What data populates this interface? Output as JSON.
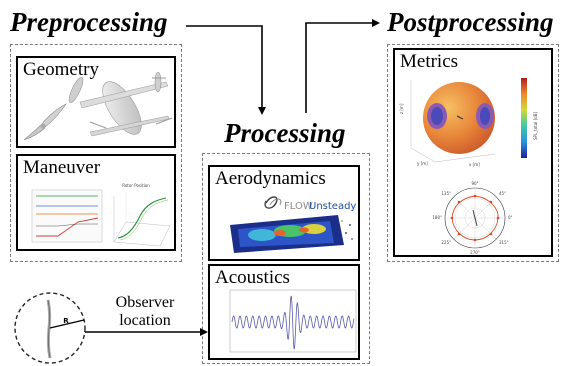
{
  "stages": {
    "preprocessing": "Preprocessing",
    "processing": "Processing",
    "postprocessing": "Postprocessing"
  },
  "boxes": {
    "geometry": "Geometry",
    "maneuver": "Maneuver",
    "aerodynamics": "Aerodynamics",
    "acoustics": "Acoustics",
    "metrics": "Metrics"
  },
  "observer": {
    "line1": "Observer",
    "line2": "location",
    "radius_label": "R"
  },
  "flowunsteady": {
    "brand_a": "FLOW",
    "brand_b": "Unsteady"
  },
  "maneuver_panel": {
    "right_title": "Rotor Position"
  },
  "metrics_panel": {
    "colorbar_label": "SPL_total [dB]",
    "axis_x": "x [m]",
    "axis_y": "y [m]",
    "axis_z": "z [m]",
    "polar_angles": [
      "90°",
      "45°",
      "0°",
      "315°",
      "270°",
      "225°",
      "180°",
      "135°"
    ]
  },
  "colors": {
    "dashed_border": "#7a7a7a",
    "arrow": "#000000"
  }
}
